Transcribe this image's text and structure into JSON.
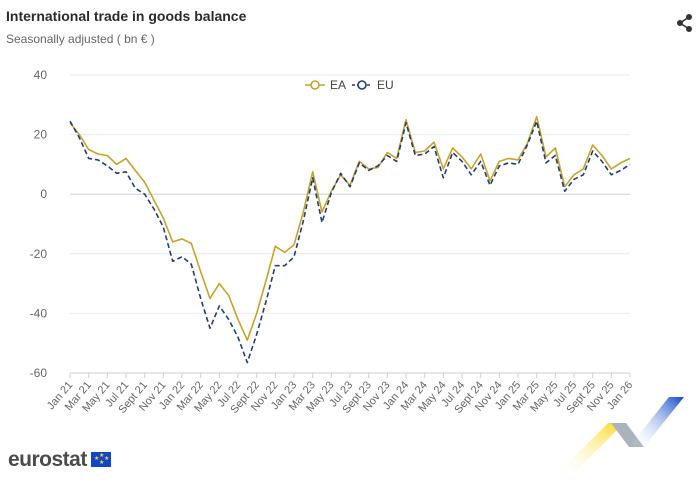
{
  "header": {
    "title": "International trade in goods balance",
    "subtitle": "Seasonally adjusted ( bn € )"
  },
  "share": {
    "icon": "share-icon"
  },
  "brand": {
    "logo_text": "eurostat",
    "flag_icon": "eu-flag-icon"
  },
  "colors": {
    "ea": "#c9a227",
    "eu": "#1f3f7a",
    "grid": "#e3ecee",
    "axis": "#c8d0d6",
    "accent_blue": "#0e47cb",
    "accent_yellow": "#ffd617"
  },
  "chart_data": {
    "type": "line",
    "title": "International trade in goods balance",
    "subtitle": "Seasonally adjusted ( bn € )",
    "ylim": [
      -60,
      40
    ],
    "yticks": [
      "40",
      "20",
      "0",
      "-20",
      "-40",
      "-60"
    ],
    "ytick_values": [
      40,
      20,
      0,
      -20,
      -40,
      -60
    ],
    "grid": true,
    "legend_position": "top-center",
    "x": [
      "Jan 21",
      "Feb 21",
      "Mar 21",
      "Apr 21",
      "May 21",
      "Jun 21",
      "Jul 21",
      "Aug 21",
      "Sept 21",
      "Oct 21",
      "Nov 21",
      "Dec 21",
      "Jan 22",
      "Feb 22",
      "Mar 22",
      "Apr 22",
      "May 22",
      "Jun 22",
      "Jul 22",
      "Aug 22",
      "Sept 22",
      "Oct 22",
      "Nov 22",
      "Dec 22",
      "Jan 23",
      "Feb 23",
      "Mar 23",
      "Apr 23",
      "May 23",
      "Jun 23",
      "Jul 23",
      "Aug 23",
      "Sept 23",
      "Oct 23",
      "Nov 23",
      "Dec 23",
      "Jan 24",
      "Feb 24",
      "Mar 24",
      "Apr 24",
      "May 24",
      "Jun 24",
      "Jul 24",
      "Aug 24",
      "Sept 24",
      "Oct 24",
      "Nov 24",
      "Dec 24",
      "Jan 25",
      "Feb 25",
      "Mar 25",
      "Apr 25",
      "May 25",
      "Jun 25",
      "Jul 25",
      "Aug 25",
      "Sept 25",
      "Oct 25",
      "Nov 25",
      "Dec 25",
      "Jan 26"
    ],
    "xtick_labels": [
      "Jan 21",
      "Mar 21",
      "May 21",
      "Jul 21",
      "Sept 21",
      "Nov 21",
      "Jan 22",
      "Mar 22",
      "May 22",
      "Jul 22",
      "Sept 22",
      "Nov 22",
      "Jan 23",
      "Mar 23",
      "May 23",
      "Jul 23",
      "Sept 23",
      "Nov 23",
      "Jan 24",
      "Mar 24",
      "May 24",
      "Jul 24",
      "Sept 24",
      "Nov 24",
      "Jan 25",
      "Mar 25",
      "May 25",
      "Jul 25",
      "Sept 25",
      "Nov 25",
      "Jan 26"
    ],
    "series": [
      {
        "name": "EA",
        "style": "solid",
        "values": [
          24,
          20,
          15,
          13.5,
          13,
          10,
          12,
          8,
          4,
          -2,
          -8,
          -16,
          -15,
          -16.5,
          -26,
          -35,
          -30,
          -34,
          -42,
          -49,
          -40,
          -29,
          -17.5,
          -19.5,
          -17,
          -6,
          7.5,
          -6,
          1,
          6.5,
          3,
          11,
          8.5,
          9,
          14,
          12,
          25,
          14,
          14.5,
          17.5,
          8.5,
          15.5,
          12.5,
          8.5,
          13.5,
          4.5,
          11,
          12,
          11.5,
          17,
          26,
          12.5,
          15.5,
          2.5,
          6.5,
          8.5,
          16.5,
          13,
          8.5,
          10.5,
          12
        ]
      },
      {
        "name": "EU",
        "style": "dashed",
        "values": [
          24.5,
          19,
          12,
          11.5,
          9.5,
          7,
          7.5,
          2,
          0,
          -5,
          -11,
          -22.5,
          -21,
          -23.5,
          -35,
          -45,
          -37.5,
          -42,
          -48,
          -56.5,
          -47,
          -36,
          -24,
          -24,
          -21,
          -9,
          5.5,
          -9.5,
          0.5,
          7,
          2.5,
          10.5,
          8,
          9.5,
          13,
          11,
          24,
          13,
          13.5,
          16,
          5.5,
          14,
          11,
          6.5,
          11,
          3,
          9.5,
          10.5,
          10,
          16.5,
          24.5,
          10.5,
          13,
          1,
          5,
          6.5,
          14.5,
          11,
          6.5,
          8,
          10
        ]
      }
    ]
  }
}
